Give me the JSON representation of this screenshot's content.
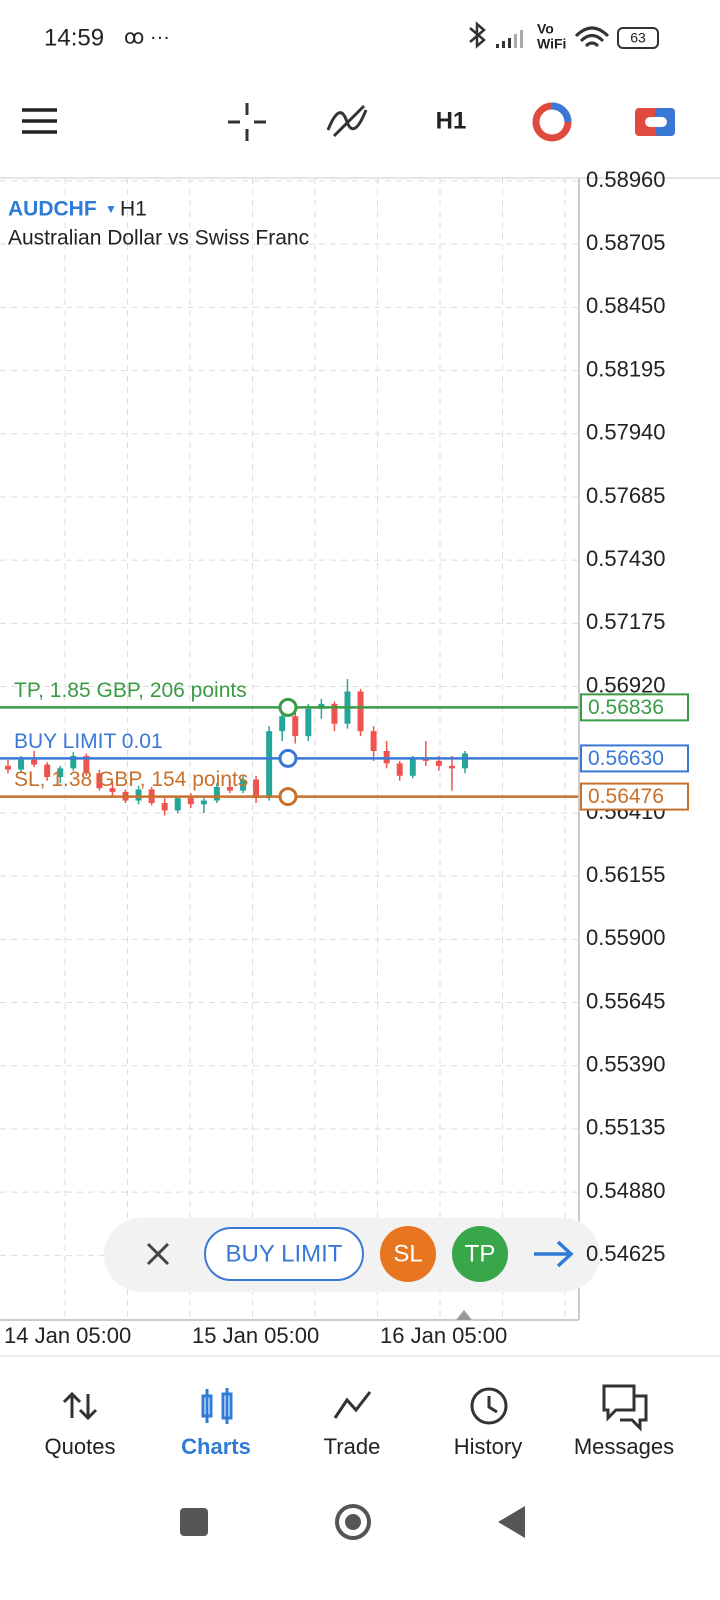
{
  "status_bar": {
    "time": "14:59",
    "vo": "Vo",
    "wifi": "WiFi",
    "battery": "63"
  },
  "toolbar": {
    "timeframe": "H1"
  },
  "chart_data": {
    "type": "candlestick",
    "symbol": "AUDCHF",
    "timeframe": "H1",
    "description": "Australian Dollar vs Swiss Franc",
    "up_color": "#26a69a",
    "down_color": "#ef5350",
    "grid": true,
    "ylim": [
      0.54364,
      0.58972
    ],
    "yticks": [
      {
        "value": 0.5896,
        "label": "0.58960"
      },
      {
        "value": 0.58705,
        "label": "0.58705"
      },
      {
        "value": 0.5845,
        "label": "0.58450"
      },
      {
        "value": 0.58195,
        "label": "0.58195"
      },
      {
        "value": 0.5794,
        "label": "0.57940"
      },
      {
        "value": 0.57685,
        "label": "0.57685"
      },
      {
        "value": 0.5743,
        "label": "0.57430"
      },
      {
        "value": 0.57175,
        "label": "0.57175"
      },
      {
        "value": 0.5692,
        "label": "0.56920"
      },
      {
        "value": 0.5641,
        "label": "0.56410"
      },
      {
        "value": 0.56155,
        "label": "0.56155"
      },
      {
        "value": 0.559,
        "label": "0.55900"
      },
      {
        "value": 0.55645,
        "label": "0.55645"
      },
      {
        "value": 0.5539,
        "label": "0.55390"
      },
      {
        "value": 0.55135,
        "label": "0.55135"
      },
      {
        "value": 0.5488,
        "label": "0.54880"
      },
      {
        "value": 0.54625,
        "label": "0.54625"
      }
    ],
    "xlabels": [
      "14 Jan 05:00",
      "15 Jan 05:00",
      "16 Jan 05:00"
    ],
    "ohlc": [
      [
        0.566,
        0.56625,
        0.5657,
        0.56585
      ],
      [
        0.56585,
        0.5664,
        0.56575,
        0.56625
      ],
      [
        0.56625,
        0.5666,
        0.56595,
        0.56605
      ],
      [
        0.56605,
        0.56615,
        0.5654,
        0.56555
      ],
      [
        0.56555,
        0.566,
        0.5653,
        0.5659
      ],
      [
        0.5659,
        0.56655,
        0.5658,
        0.5664
      ],
      [
        0.5664,
        0.5665,
        0.5656,
        0.5657
      ],
      [
        0.5657,
        0.56585,
        0.565,
        0.5651
      ],
      [
        0.5651,
        0.5654,
        0.5648,
        0.56495
      ],
      [
        0.56495,
        0.56505,
        0.5645,
        0.5646
      ],
      [
        0.5646,
        0.5652,
        0.56445,
        0.56505
      ],
      [
        0.56505,
        0.56515,
        0.5644,
        0.5645
      ],
      [
        0.5645,
        0.5647,
        0.564,
        0.5642
      ],
      [
        0.5642,
        0.5648,
        0.5641,
        0.5647
      ],
      [
        0.5647,
        0.5649,
        0.5643,
        0.56445
      ],
      [
        0.56445,
        0.5647,
        0.5641,
        0.5646
      ],
      [
        0.5646,
        0.5653,
        0.5645,
        0.56515
      ],
      [
        0.56515,
        0.56545,
        0.5649,
        0.565
      ],
      [
        0.565,
        0.5656,
        0.5649,
        0.56545
      ],
      [
        0.56545,
        0.5656,
        0.5645,
        0.5647
      ],
      [
        0.5647,
        0.5676,
        0.5646,
        0.5674
      ],
      [
        0.5674,
        0.5684,
        0.567,
        0.568
      ],
      [
        0.568,
        0.5683,
        0.5669,
        0.5672
      ],
      [
        0.5672,
        0.5685,
        0.567,
        0.5683
      ],
      [
        0.5683,
        0.5687,
        0.5679,
        0.5685
      ],
      [
        0.5685,
        0.5686,
        0.5674,
        0.5677
      ],
      [
        0.5677,
        0.5695,
        0.5675,
        0.569
      ],
      [
        0.569,
        0.5691,
        0.5672,
        0.5674
      ],
      [
        0.5674,
        0.5676,
        0.5662,
        0.5666
      ],
      [
        0.5666,
        0.567,
        0.5659,
        0.5661
      ],
      [
        0.5661,
        0.5662,
        0.5654,
        0.5656
      ],
      [
        0.5656,
        0.5664,
        0.5655,
        0.5663
      ],
      [
        0.5663,
        0.567,
        0.566,
        0.5662
      ],
      [
        0.5662,
        0.5664,
        0.5658,
        0.566
      ],
      [
        0.566,
        0.5664,
        0.565,
        0.5659
      ],
      [
        0.5659,
        0.5666,
        0.5657,
        0.5665
      ]
    ],
    "levels": [
      {
        "label": "TP, 1.85 GBP, 206 points",
        "value": 0.56836,
        "value_label": "0.56836",
        "color": "#3a9b45"
      },
      {
        "label": "BUY LIMIT 0.01",
        "value": 0.5663,
        "value_label": "0.56630",
        "color": "#3a78d6"
      },
      {
        "label": "SL, 1.38 GBP, 154 points",
        "value": 0.56476,
        "value_label": "0.56476",
        "color": "#c8702a"
      }
    ]
  },
  "order_bar": {
    "buy_limit": "BUY LIMIT",
    "sl": "SL",
    "tp": "TP"
  },
  "nav": {
    "items": [
      "Quotes",
      "Charts",
      "Trade",
      "History",
      "Messages"
    ],
    "active": 1
  }
}
